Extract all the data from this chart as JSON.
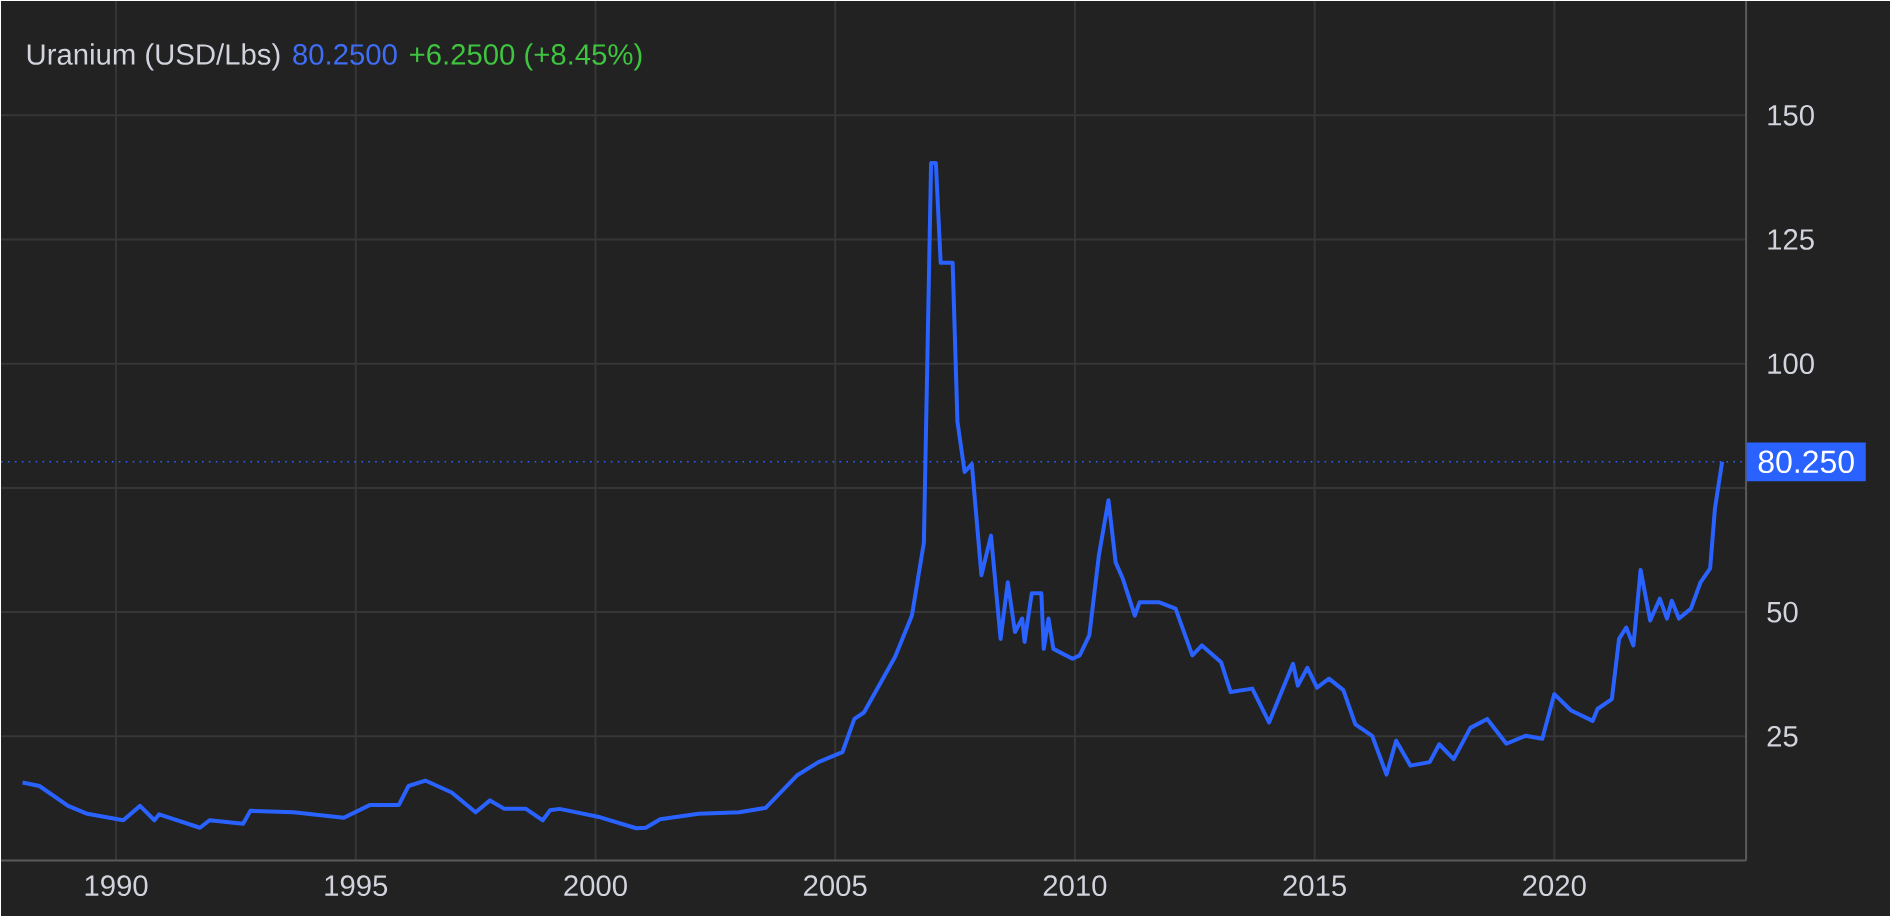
{
  "chart_data": {
    "type": "line",
    "title": "Uranium (USD/Lbs)",
    "annotations": [
      "80.2500",
      "+6.2500 (+8.45%)"
    ],
    "series": [
      {
        "color": "#2962ff",
        "x": [
          1988.05,
          1988.4,
          1989.0,
          1989.4,
          1990.15,
          1990.5,
          1990.8,
          1990.9,
          1991.75,
          1991.95,
          1992.65,
          1992.8,
          1993.7,
          1994.75,
          1995.3,
          1995.9,
          1996.1,
          1996.45,
          1997.0,
          1997.5,
          1997.8,
          1998.1,
          1998.55,
          1998.9,
          1999.05,
          1999.25,
          2000.1,
          2000.85,
          2001.05,
          2001.35,
          2002.15,
          2003.0,
          2003.55,
          2004.2,
          2004.65,
          2005.15,
          2005.4,
          2005.6,
          2006.25,
          2006.6,
          2006.85,
          2007.0,
          2007.1,
          2007.2,
          2007.45,
          2007.55,
          2007.7,
          2007.85,
          2008.05,
          2008.25,
          2008.45,
          2008.6,
          2008.75,
          2008.9,
          2008.95,
          2009.1,
          2009.3,
          2009.35,
          2009.45,
          2009.55,
          2009.95,
          2010.1,
          2010.3,
          2010.5,
          2010.7,
          2010.85,
          2011.0,
          2011.25,
          2011.35,
          2011.75,
          2012.1,
          2012.45,
          2012.65,
          2013.05,
          2013.25,
          2013.7,
          2014.05,
          2014.55,
          2014.65,
          2014.85,
          2015.05,
          2015.3,
          2015.6,
          2015.85,
          2016.2,
          2016.5,
          2016.7,
          2017.0,
          2017.4,
          2017.6,
          2017.9,
          2018.25,
          2018.6,
          2019.0,
          2019.4,
          2019.75,
          2020.0,
          2020.35,
          2020.8,
          2020.9,
          2021.2,
          2021.35,
          2021.5,
          2021.65,
          2021.8,
          2022.0,
          2022.2,
          2022.35,
          2022.45,
          2022.6,
          2022.85,
          2023.05,
          2023.25,
          2023.35,
          2023.5
        ],
        "values": [
          15.7,
          15.0,
          11.0,
          9.4,
          8.1,
          11.0,
          8.1,
          9.3,
          6.6,
          8.1,
          7.4,
          10.0,
          9.7,
          8.6,
          11.2,
          11.2,
          15.0,
          16.1,
          13.7,
          9.7,
          12.1,
          10.4,
          10.4,
          8.1,
          10.1,
          10.4,
          8.7,
          6.5,
          6.6,
          8.3,
          9.4,
          9.7,
          10.6,
          17.1,
          19.8,
          21.8,
          28.5,
          29.8,
          41.0,
          49.3,
          64.0,
          140.4,
          140.4,
          120.3,
          120.3,
          88.3,
          78.2,
          79.8,
          57.4,
          65.4,
          44.6,
          56.0,
          46.0,
          48.7,
          44.0,
          53.8,
          53.8,
          42.6,
          48.7,
          42.6,
          40.6,
          41.3,
          45.3,
          61.4,
          72.5,
          60.0,
          56.7,
          49.3,
          52.0,
          52.0,
          50.7,
          41.3,
          43.3,
          39.9,
          33.9,
          34.6,
          27.8,
          39.6,
          35.2,
          38.8,
          34.8,
          36.6,
          34.3,
          27.4,
          25.1,
          17.3,
          24.1,
          19.1,
          19.8,
          23.4,
          20.4,
          26.7,
          28.5,
          23.5,
          25.1,
          24.5,
          33.5,
          30.2,
          28.1,
          30.5,
          32.5,
          44.6,
          46.9,
          43.3,
          58.5,
          48.3,
          52.7,
          48.7,
          52.3,
          48.7,
          50.7,
          56.0,
          58.8,
          70.8,
          80.25
        ]
      }
    ],
    "xlim": [
      1987.6,
      2024.0
    ],
    "ylim": [
      0,
      173
    ],
    "xticks": [
      1990,
      1995,
      2000,
      2005,
      2010,
      2015,
      2020
    ],
    "yticks": [
      25,
      50,
      {
        "value": 75,
        "label": null
      },
      100,
      125,
      150
    ],
    "ref_lines": [
      {
        "axis": "y",
        "value": 80.25,
        "label": "80.250",
        "color": "#2962ff",
        "line_style": "dotted"
      }
    ],
    "grid": true
  }
}
